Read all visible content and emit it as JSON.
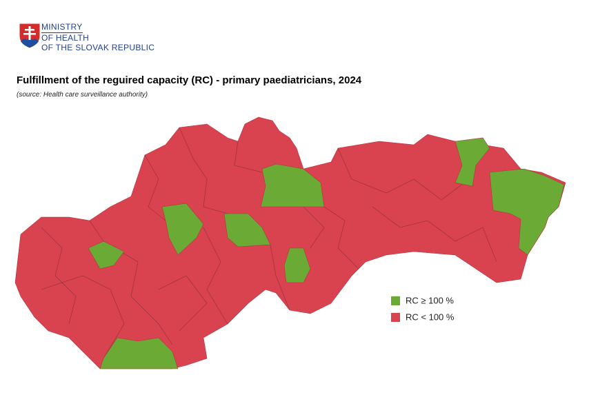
{
  "header": {
    "org_lines": [
      "MINISTRY",
      "OF HEALTH",
      "OF THE SLOVAK REPUBLIC"
    ]
  },
  "title": "Fulfillment of the reguired capacity (RC) - primary paediatricians, 2024",
  "subtitle": "(source: Health care surveillance authority)",
  "legend": [
    {
      "label": "RC ≥ 100 %",
      "color": "#6aaa35"
    },
    {
      "label": "RC < 100 %",
      "color": "#d9434f"
    }
  ]
}
